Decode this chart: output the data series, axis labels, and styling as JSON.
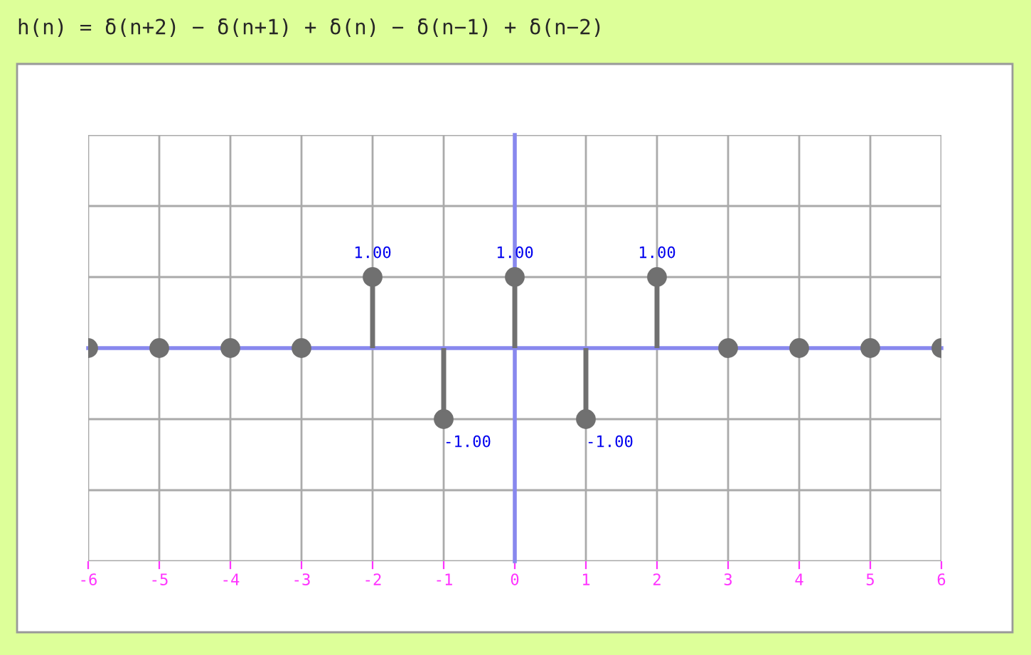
{
  "chart_data": {
    "type": "lollipop",
    "title": "h(n) = δ(n+2) − δ(n+1) + δ(n) − δ(n−1) + δ(n−2)",
    "x": [
      -6,
      -5,
      -4,
      -3,
      -2,
      -1,
      0,
      1,
      2,
      3,
      4,
      5,
      6
    ],
    "series": [
      {
        "color": "#707070",
        "values": [
          0,
          0,
          0,
          0,
          1,
          -1,
          1,
          -1,
          1,
          0,
          0,
          0,
          0
        ],
        "value_labels": [
          null,
          null,
          null,
          null,
          "1.00",
          "-1.00",
          "1.00",
          "-1.00",
          "1.00",
          null,
          null,
          null,
          null
        ]
      }
    ],
    "marker": "circle",
    "xlim": [
      -6,
      6
    ],
    "xticks": [
      -6,
      -5,
      -4,
      -3,
      -2,
      -1,
      0,
      1,
      2,
      3,
      4,
      5,
      6
    ],
    "ylim": [
      -3,
      3
    ],
    "yticks": [
      {
        "value": -3,
        "label": null
      },
      {
        "value": -2,
        "label": null
      },
      {
        "value": -1,
        "label": null
      },
      {
        "value": 0,
        "label": null
      },
      {
        "value": 1,
        "label": null
      },
      {
        "value": 2,
        "label": null
      },
      {
        "value": 3,
        "label": null
      }
    ],
    "tick_labels": "x",
    "grid": true
  }
}
